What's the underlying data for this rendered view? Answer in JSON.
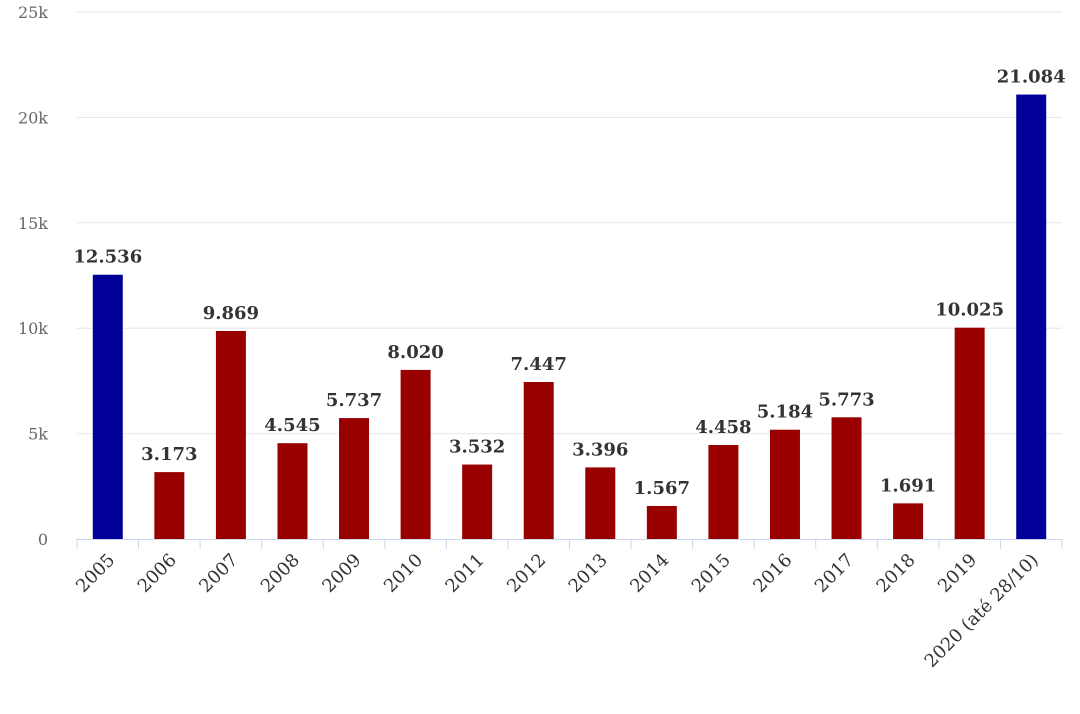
{
  "chart_data": {
    "type": "bar",
    "categories": [
      "2005",
      "2006",
      "2007",
      "2008",
      "2009",
      "2010",
      "2011",
      "2012",
      "2013",
      "2014",
      "2015",
      "2016",
      "2017",
      "2018",
      "2019",
      "2020 (até 28/10)"
    ],
    "values": [
      12536,
      3173,
      9869,
      4545,
      5737,
      8020,
      3532,
      7447,
      3396,
      1567,
      4458,
      5184,
      5773,
      1691,
      10025,
      21084
    ],
    "value_labels": [
      "12.536",
      "3.173",
      "9.869",
      "4.545",
      "5.737",
      "8.020",
      "3.532",
      "7.447",
      "3.396",
      "1.567",
      "4.458",
      "5.184",
      "5.773",
      "1.691",
      "10.025",
      "21.084"
    ],
    "colors": [
      "#000099",
      "#990000",
      "#990000",
      "#990000",
      "#990000",
      "#990000",
      "#990000",
      "#990000",
      "#990000",
      "#990000",
      "#990000",
      "#990000",
      "#990000",
      "#990000",
      "#990000",
      "#000099"
    ],
    "ylim": [
      0,
      25000
    ],
    "yticks": [
      0,
      5000,
      10000,
      15000,
      20000,
      25000
    ],
    "ytick_labels": [
      "0",
      "5k",
      "10k",
      "15k",
      "20k",
      "25k"
    ],
    "grid": true,
    "title": "",
    "xlabel": "",
    "ylabel": ""
  }
}
